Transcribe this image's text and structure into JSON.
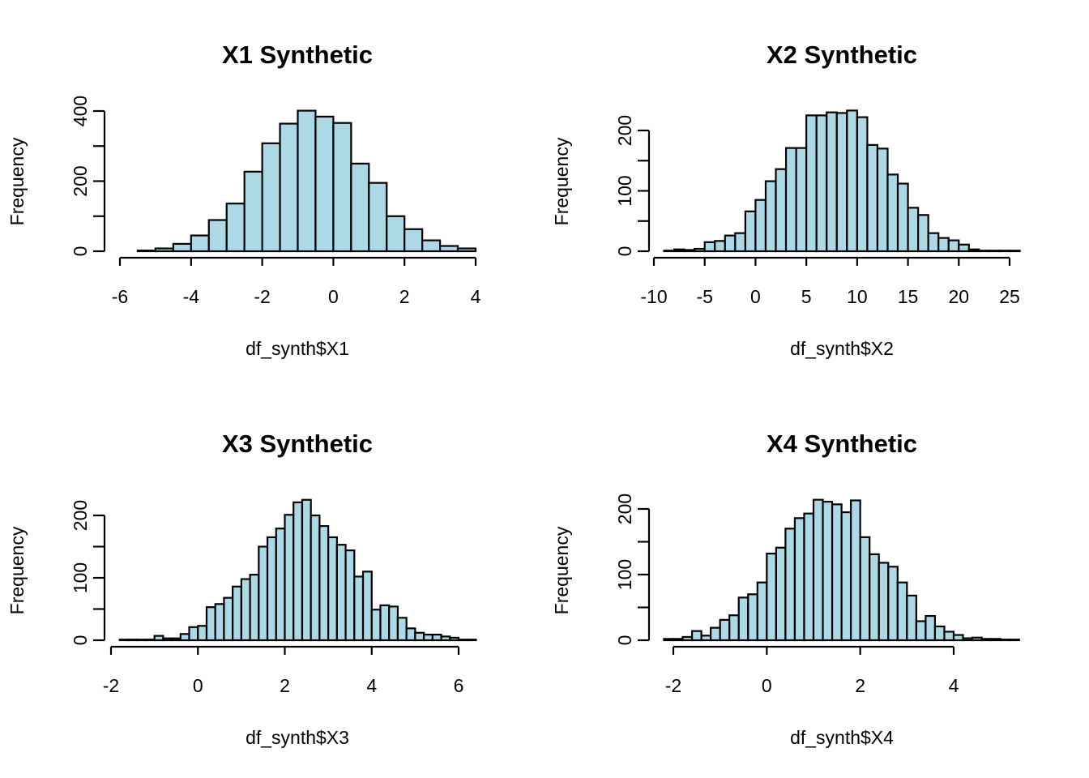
{
  "bar_color": "#add8e6",
  "chart_data": [
    {
      "type": "bar",
      "title": "X1 Synthetic",
      "xlabel": "df_synth$X1",
      "ylabel": "Frequency",
      "bin_start": -6,
      "bin_width": 0.5,
      "values": [
        0,
        2,
        8,
        21,
        45,
        89,
        136,
        227,
        308,
        364,
        401,
        384,
        366,
        250,
        195,
        100,
        63,
        31,
        15,
        8
      ],
      "xlim": [
        -6,
        4
      ],
      "ylim": [
        0,
        400
      ],
      "x_ticks": [
        -6,
        -4,
        -2,
        0,
        2,
        4
      ],
      "x_tick_labels": [
        "-6",
        "-4",
        "-2",
        "0",
        "2",
        "4"
      ],
      "y_ticks": [
        0,
        100,
        200,
        300,
        400
      ],
      "y_tick_labels": [
        "0",
        "200",
        "400"
      ],
      "y_tick_label_values": [
        0,
        200,
        400
      ],
      "grid": false
    },
    {
      "type": "bar",
      "title": "X2 Synthetic",
      "xlabel": "df_synth$X2",
      "ylabel": "Frequency",
      "bin_start": -9,
      "bin_width": 1,
      "values": [
        1,
        3,
        2,
        4,
        15,
        17,
        26,
        30,
        66,
        85,
        116,
        136,
        171,
        171,
        225,
        225,
        230,
        229,
        233,
        222,
        176,
        170,
        127,
        112,
        72,
        60,
        30,
        22,
        18,
        11,
        3,
        1,
        1,
        1,
        1
      ],
      "xlim": [
        -10,
        25
      ],
      "ylim": [
        0,
        200
      ],
      "x_ticks": [
        -10,
        -5,
        0,
        5,
        10,
        15,
        20,
        25
      ],
      "x_tick_labels": [
        "-10",
        "-5",
        "0",
        "5",
        "10",
        "15",
        "20",
        "25"
      ],
      "y_ticks": [
        0,
        50,
        100,
        150,
        200
      ],
      "y_tick_labels": [
        "0",
        "100",
        "200"
      ],
      "y_tick_label_values": [
        0,
        100,
        200
      ],
      "grid": false
    },
    {
      "type": "bar",
      "title": "X3 Synthetic",
      "xlabel": "df_synth$X3",
      "ylabel": "Frequency",
      "bin_start": -1.8,
      "bin_width": 0.2,
      "values": [
        1,
        1,
        1,
        1,
        7,
        3,
        3,
        10,
        21,
        23,
        53,
        58,
        68,
        86,
        98,
        105,
        150,
        165,
        179,
        201,
        221,
        225,
        200,
        183,
        165,
        153,
        144,
        102,
        110,
        49,
        56,
        54,
        36,
        19,
        12,
        9,
        9,
        6,
        4,
        1,
        1
      ],
      "xlim": [
        -2,
        6
      ],
      "ylim": [
        0,
        200
      ],
      "x_ticks": [
        -2,
        0,
        2,
        4,
        6
      ],
      "x_tick_labels": [
        "-2",
        "0",
        "2",
        "4",
        "6"
      ],
      "y_ticks": [
        0,
        50,
        100,
        150,
        200
      ],
      "y_tick_labels": [
        "0",
        "100",
        "200"
      ],
      "y_tick_label_values": [
        0,
        100,
        200
      ],
      "grid": false
    },
    {
      "type": "bar",
      "title": "X4 Synthetic",
      "xlabel": "df_synth$X4",
      "ylabel": "Frequency",
      "bin_start": -2.2,
      "bin_width": 0.2,
      "values": [
        2,
        2,
        5,
        14,
        7,
        19,
        31,
        38,
        65,
        70,
        88,
        132,
        141,
        170,
        186,
        193,
        214,
        211,
        207,
        195,
        213,
        157,
        131,
        118,
        112,
        88,
        68,
        29,
        37,
        21,
        13,
        8,
        3,
        4,
        2,
        2,
        1,
        1
      ],
      "xlim": [
        -2,
        4
      ],
      "ylim": [
        0,
        200
      ],
      "x_ticks": [
        -2,
        0,
        2,
        4
      ],
      "x_tick_labels": [
        "-2",
        "0",
        "2",
        "4"
      ],
      "y_ticks": [
        0,
        50,
        100,
        150,
        200
      ],
      "y_tick_labels": [
        "0",
        "100",
        "200"
      ],
      "y_tick_label_values": [
        0,
        100,
        200
      ],
      "grid": false
    }
  ]
}
